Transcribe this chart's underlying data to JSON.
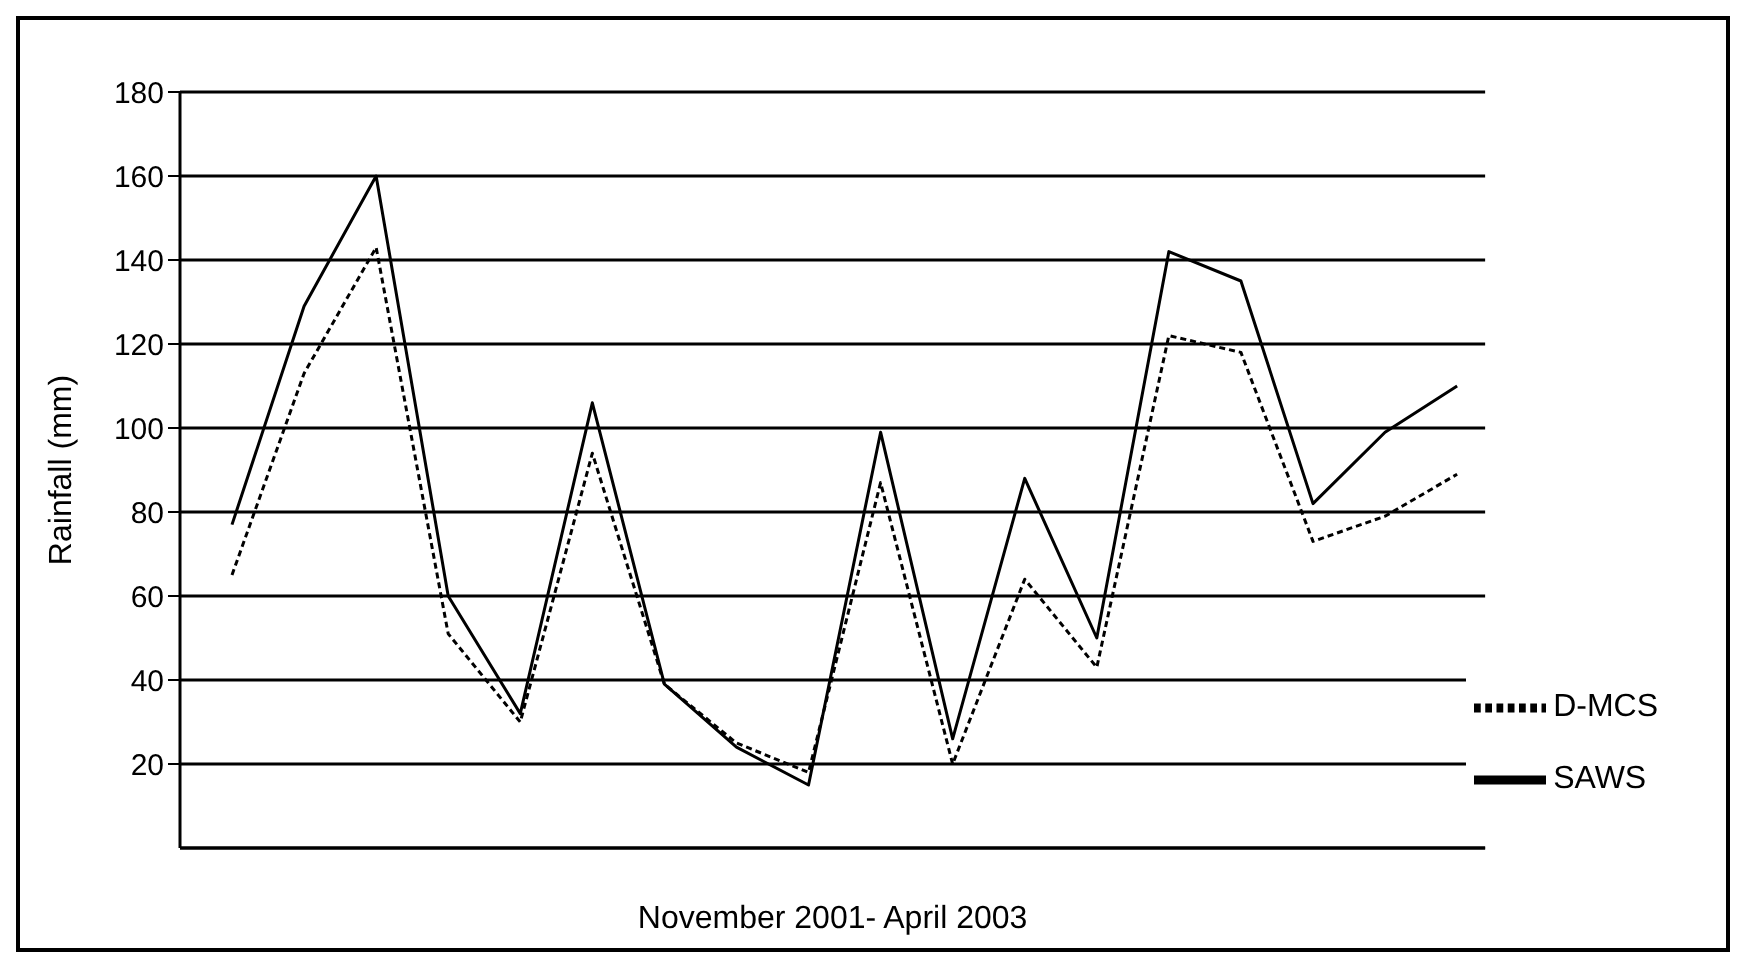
{
  "chart_data": {
    "type": "line",
    "xlabel": "November 2001- April 2003",
    "ylabel": "Rainfall (mm)",
    "categories": [
      null,
      null,
      null,
      null,
      null,
      null,
      null,
      null,
      null,
      null,
      null,
      null,
      null,
      null,
      null,
      null,
      null,
      null
    ],
    "series": [
      {
        "name": "SAWS",
        "color": "#000000",
        "line_style": "solid",
        "values": [
          77,
          129,
          160,
          60,
          32,
          106,
          39,
          24,
          15,
          99,
          26,
          88,
          50,
          142,
          135,
          82,
          99,
          110
        ]
      },
      {
        "name": "D-MCS",
        "color": "#000000",
        "line_style": "dotted",
        "values": [
          65,
          113,
          143,
          51,
          30,
          94,
          39,
          25,
          18,
          87,
          20,
          64,
          43,
          122,
          118,
          73,
          79,
          89
        ]
      }
    ],
    "ylim": [
      0,
      180
    ],
    "yticks": [
      20,
      40,
      60,
      80,
      100,
      120,
      140,
      160,
      180
    ],
    "grid": "y",
    "legend": "bottom right",
    "marker": "none"
  }
}
